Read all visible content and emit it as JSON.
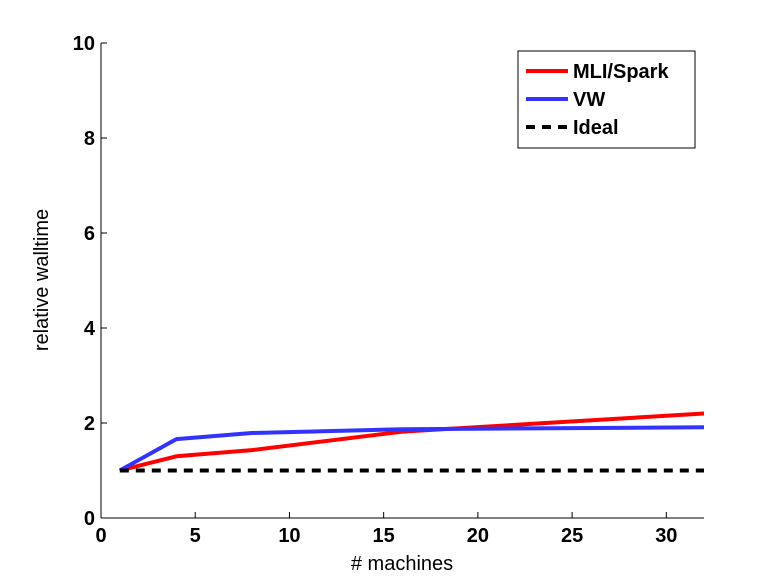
{
  "chart_data": {
    "type": "line",
    "title": "",
    "xlabel": "# machines",
    "ylabel": "relative walltime",
    "xlim": [
      0,
      32
    ],
    "ylim": [
      0,
      10
    ],
    "xticks": [
      0,
      5,
      10,
      15,
      20,
      25,
      30
    ],
    "yticks": [
      0,
      2,
      4,
      6,
      8,
      10
    ],
    "grid": false,
    "legend_position": "top-right",
    "series": [
      {
        "name": "MLI/Spark",
        "color": "#ff0000",
        "style": "solid",
        "x": [
          1,
          4,
          8,
          16,
          32
        ],
        "y": [
          1.0,
          1.3,
          1.43,
          1.82,
          2.2
        ]
      },
      {
        "name": "VW",
        "color": "#3333ff",
        "style": "solid",
        "x": [
          1,
          4,
          8,
          16,
          32
        ],
        "y": [
          1.0,
          1.66,
          1.79,
          1.87,
          1.91
        ]
      },
      {
        "name": "Ideal",
        "color": "#000000",
        "style": "dashed",
        "x": [
          1,
          32
        ],
        "y": [
          1.0,
          1.0
        ]
      }
    ]
  }
}
